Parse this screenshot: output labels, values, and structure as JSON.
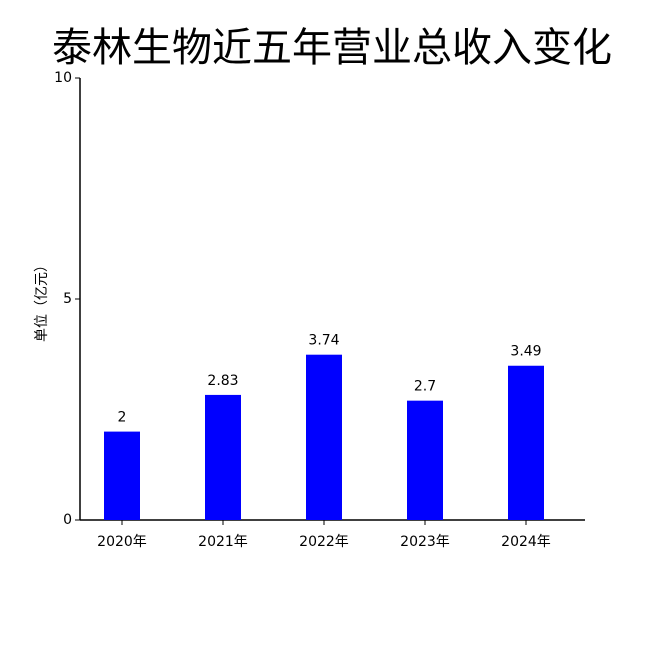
{
  "chart_data": {
    "type": "bar",
    "title": "泰林生物近五年营业总收入变化",
    "ylabel": "单位（亿元）",
    "categories": [
      "2020年",
      "2021年",
      "2022年",
      "2023年",
      "2024年"
    ],
    "values": [
      2,
      2.83,
      3.74,
      2.7,
      3.49
    ],
    "color": "#0000ff",
    "ylim": [
      0,
      10
    ],
    "yticks": [
      0,
      5,
      10
    ],
    "grid": false
  }
}
